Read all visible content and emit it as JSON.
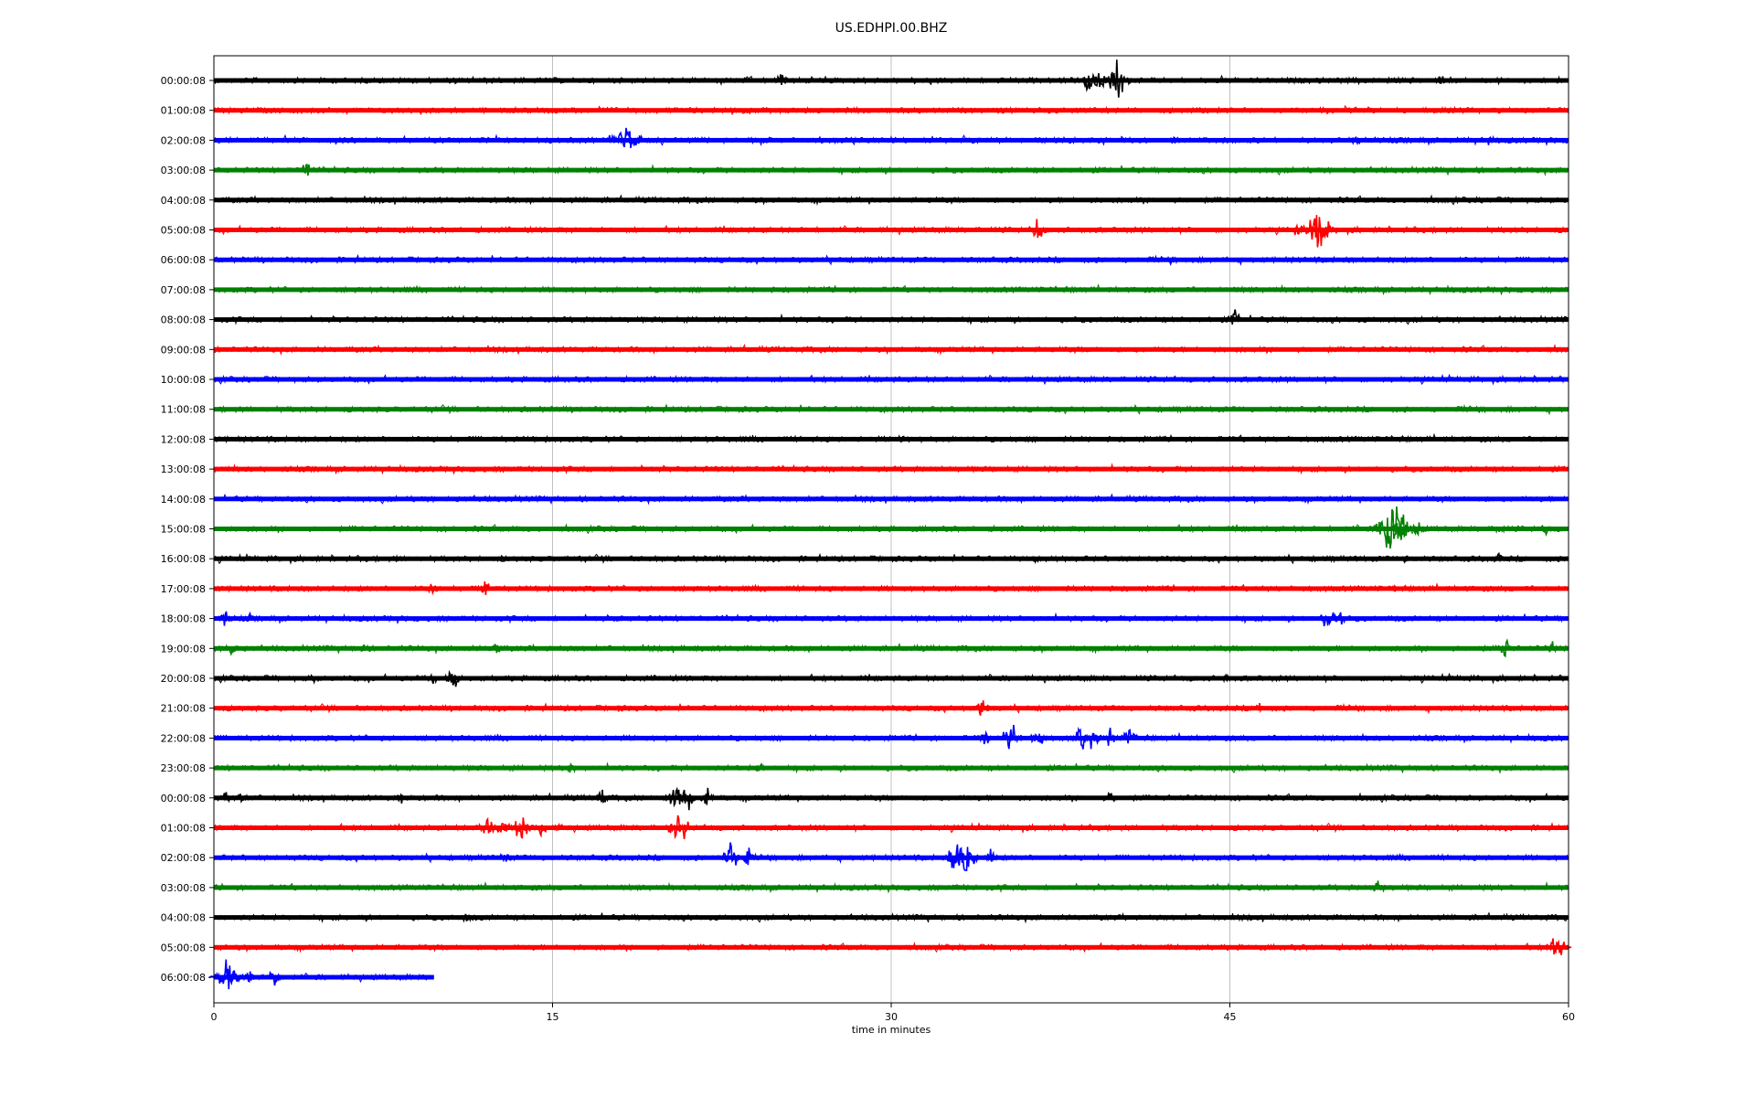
{
  "chart_data": {
    "type": "line",
    "title": "US.EDHPI.00.BHZ",
    "xlabel": "time in minutes",
    "ylabel": "",
    "xlim": [
      0,
      60
    ],
    "xticks": [
      0,
      15,
      30,
      45,
      60
    ],
    "grid": "vertical",
    "colors": [
      "#000000",
      "#ff0000",
      "#0000ff",
      "#008000"
    ],
    "rows": [
      {
        "label": "00:00:08",
        "end": 60,
        "events": [
          [
            25.1,
            10
          ],
          [
            38.8,
            14
          ],
          [
            39.2,
            12
          ],
          [
            40.0,
            22
          ],
          [
            54.3,
            8
          ]
        ]
      },
      {
        "label": "01:00:08",
        "end": 60,
        "events": []
      },
      {
        "label": "02:00:08",
        "end": 60,
        "events": [
          [
            17.6,
            8
          ],
          [
            18.3,
            20
          ],
          [
            18.7,
            12
          ],
          [
            42.5,
            4
          ],
          [
            50.6,
            6
          ],
          [
            56.4,
            6
          ]
        ]
      },
      {
        "label": "03:00:08",
        "end": 60,
        "events": [
          [
            4.1,
            9
          ]
        ]
      },
      {
        "label": "04:00:08",
        "end": 60,
        "events": [
          [
            31.7,
            3
          ]
        ]
      },
      {
        "label": "05:00:08",
        "end": 60,
        "events": [
          [
            36.5,
            12
          ],
          [
            48.0,
            8
          ],
          [
            48.9,
            24
          ],
          [
            49.3,
            14
          ]
        ]
      },
      {
        "label": "06:00:08",
        "end": 60,
        "events": [
          [
            42.4,
            6
          ]
        ]
      },
      {
        "label": "07:00:08",
        "end": 60,
        "events": [
          [
            24.8,
            3
          ]
        ]
      },
      {
        "label": "08:00:08",
        "end": 60,
        "events": [
          [
            45.2,
            12
          ]
        ]
      },
      {
        "label": "09:00:08",
        "end": 60,
        "events": []
      },
      {
        "label": "10:00:08",
        "end": 60,
        "events": []
      },
      {
        "label": "11:00:08",
        "end": 60,
        "events": []
      },
      {
        "label": "12:00:08",
        "end": 60,
        "events": [
          [
            30.5,
            6
          ]
        ]
      },
      {
        "label": "13:00:08",
        "end": 60,
        "events": []
      },
      {
        "label": "14:00:08",
        "end": 60,
        "events": []
      },
      {
        "label": "15:00:08",
        "end": 60,
        "events": [
          [
            52.2,
            34
          ],
          [
            52.6,
            18
          ],
          [
            53.3,
            10
          ],
          [
            57.0,
            8
          ],
          [
            59.0,
            8
          ]
        ]
      },
      {
        "label": "16:00:08",
        "end": 60,
        "events": [
          [
            8.2,
            4
          ],
          [
            12.8,
            4
          ],
          [
            36.4,
            4
          ],
          [
            50.7,
            5
          ],
          [
            52.8,
            6
          ],
          [
            56.9,
            6
          ]
        ]
      },
      {
        "label": "17:00:08",
        "end": 60,
        "events": [
          [
            9.7,
            7
          ],
          [
            12.0,
            10
          ],
          [
            52.3,
            4
          ]
        ]
      },
      {
        "label": "18:00:08",
        "end": 60,
        "events": [
          [
            0.5,
            8
          ],
          [
            1.6,
            5
          ],
          [
            17.9,
            5
          ],
          [
            49.4,
            16
          ],
          [
            49.9,
            8
          ]
        ]
      },
      {
        "label": "19:00:08",
        "end": 60,
        "events": [
          [
            0.8,
            10
          ],
          [
            6.6,
            6
          ],
          [
            12.6,
            8
          ],
          [
            57.2,
            10
          ],
          [
            59.3,
            7
          ]
        ]
      },
      {
        "label": "20:00:08",
        "end": 60,
        "events": [
          [
            4.4,
            5
          ],
          [
            9.7,
            8
          ],
          [
            10.6,
            12
          ],
          [
            44.8,
            6
          ]
        ]
      },
      {
        "label": "21:00:08",
        "end": 60,
        "events": [
          [
            3.0,
            4
          ],
          [
            18.0,
            4
          ],
          [
            34.0,
            12
          ],
          [
            46.3,
            6
          ],
          [
            55.8,
            4
          ]
        ]
      },
      {
        "label": "22:00:08",
        "end": 60,
        "events": [
          [
            34.2,
            10
          ],
          [
            35.3,
            20
          ],
          [
            36.5,
            14
          ],
          [
            38.4,
            16
          ],
          [
            38.9,
            12
          ],
          [
            39.7,
            10
          ],
          [
            40.5,
            12
          ]
        ]
      },
      {
        "label": "23:00:08",
        "end": 60,
        "events": [
          [
            15.8,
            8
          ],
          [
            24.2,
            6
          ]
        ]
      },
      {
        "label": "00:00:08",
        "end": 60,
        "events": [
          [
            0.5,
            8
          ],
          [
            1.2,
            6
          ],
          [
            8.3,
            6
          ],
          [
            17.2,
            8
          ],
          [
            20.6,
            22
          ],
          [
            21.1,
            14
          ],
          [
            21.8,
            12
          ],
          [
            39.7,
            8
          ]
        ]
      },
      {
        "label": "01:00:08",
        "end": 60,
        "events": [
          [
            12.1,
            14
          ],
          [
            12.8,
            12
          ],
          [
            13.6,
            16
          ],
          [
            14.5,
            12
          ],
          [
            15.2,
            6
          ],
          [
            20.6,
            22
          ]
        ]
      },
      {
        "label": "02:00:08",
        "end": 60,
        "events": [
          [
            12.9,
            8
          ],
          [
            22.9,
            16
          ],
          [
            23.7,
            10
          ],
          [
            32.8,
            18
          ],
          [
            33.3,
            20
          ],
          [
            34.4,
            10
          ]
        ]
      },
      {
        "label": "03:00:08",
        "end": 60,
        "events": [
          [
            32.9,
            4
          ],
          [
            51.6,
            10
          ]
        ]
      },
      {
        "label": "04:00:08",
        "end": 60,
        "events": [
          [
            11.2,
            7
          ]
        ]
      },
      {
        "label": "05:00:08",
        "end": 60,
        "events": [
          [
            59.5,
            16
          ]
        ]
      },
      {
        "label": "06:00:08",
        "end": 9.75,
        "events": [
          [
            0.5,
            20
          ],
          [
            0.9,
            10
          ],
          [
            1.6,
            8
          ],
          [
            2.7,
            12
          ]
        ]
      }
    ]
  }
}
